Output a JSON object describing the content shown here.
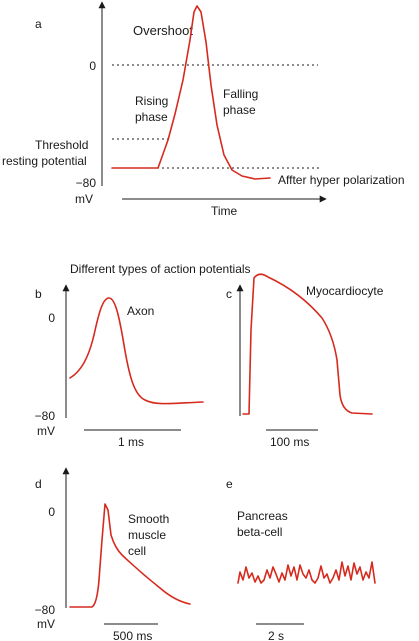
{
  "colors": {
    "trace": "#d62a1e",
    "axis": "#1a1a1a"
  },
  "panel_a": {
    "letter": "a",
    "zero_label": "0",
    "neg_label": "−80",
    "unit_label": "mV",
    "overshoot_label": "Overshoot",
    "rising_label_1": "Rising",
    "rising_label_2": "phase",
    "falling_label_1": "Falling",
    "falling_label_2": "phase",
    "threshold_label_1": "Threshold",
    "threshold_label_2": "resting potential",
    "after_label": "Affter hyper polarization",
    "time_label": "Time"
  },
  "section_title": "Different types of action potentials",
  "panel_b": {
    "letter": "b",
    "zero_label": "0",
    "neg_label": "−80",
    "unit_label": "mV",
    "trace_label": "Axon",
    "scale_label": "1 ms"
  },
  "panel_c": {
    "letter": "c",
    "trace_label": "Myocardiocyte",
    "scale_label": "100 ms"
  },
  "panel_d": {
    "letter": "d",
    "zero_label": "0",
    "neg_label": "−80",
    "unit_label": "mV",
    "trace_label_1": "Smooth",
    "trace_label_2": "muscle",
    "trace_label_3": "cell",
    "scale_label": "500 ms"
  },
  "panel_e": {
    "letter": "e",
    "trace_label_1": "Pancreas",
    "trace_label_2": "beta-cell",
    "scale_label": "2 s"
  }
}
